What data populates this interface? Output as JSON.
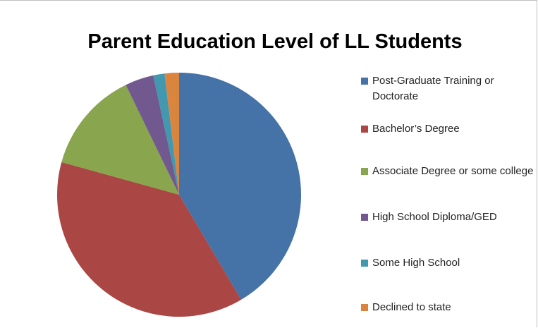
{
  "chart_data": {
    "type": "pie",
    "title": "Parent Education Level of LL Students",
    "categories": [
      "Post-Graduate Training or Doctorate",
      "Bachelor’s Degree",
      "Associate Degree or some college",
      "High School Diploma/GED",
      "Some High School",
      "Declined to state"
    ],
    "values": [
      41.5,
      37.8,
      13.5,
      3.8,
      1.5,
      1.9
    ],
    "colors": [
      "#4572a7",
      "#aa4643",
      "#89a54e",
      "#71588f",
      "#4198af",
      "#db843d"
    ],
    "legend": "right"
  }
}
